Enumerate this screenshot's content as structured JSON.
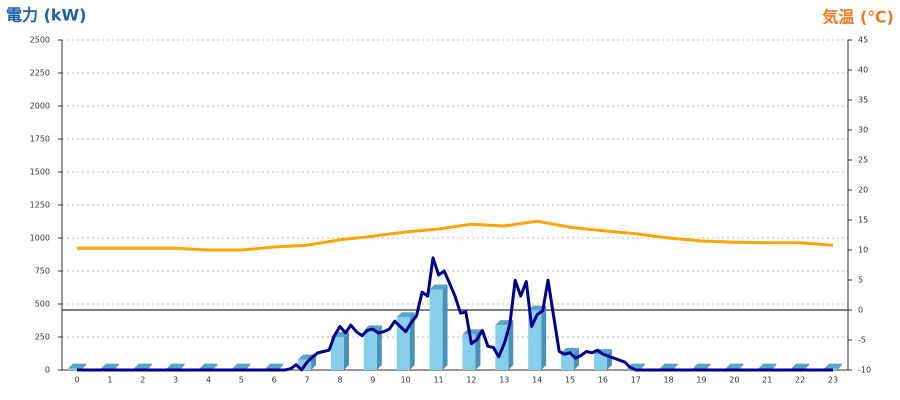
{
  "chart_data": {
    "type": "combo",
    "title_left": "電力 (kW)",
    "title_right": "気温 (℃)",
    "categories": [
      "0",
      "1",
      "2",
      "3",
      "4",
      "5",
      "6",
      "7",
      "8",
      "9",
      "10",
      "11",
      "12",
      "13",
      "14",
      "15",
      "16",
      "17",
      "18",
      "19",
      "20",
      "21",
      "22",
      "23"
    ],
    "series": [
      {
        "type": "bar",
        "color": "#87ceeb",
        "values": [
          10,
          10,
          10,
          10,
          10,
          10,
          10,
          80,
          250,
          300,
          400,
          610,
          270,
          340,
          450,
          130,
          120,
          10,
          10,
          10,
          10,
          10,
          10,
          10
        ]
      },
      {
        "type": "line",
        "color": "#00008b",
        "x": [
          0,
          6,
          6.33,
          6.5,
          6.67,
          6.83,
          7,
          7.17,
          7.33,
          7.5,
          7.67,
          7.83,
          8,
          8.17,
          8.33,
          8.5,
          8.67,
          8.83,
          9,
          9.17,
          9.33,
          9.5,
          9.67,
          9.83,
          10,
          10.17,
          10.33,
          10.5,
          10.67,
          10.83,
          11,
          11.17,
          11.33,
          11.5,
          11.67,
          11.83,
          12,
          12.17,
          12.33,
          12.5,
          12.67,
          12.83,
          13,
          13.17,
          13.33,
          13.5,
          13.67,
          13.83,
          14,
          14.17,
          14.33,
          14.5,
          14.67,
          14.83,
          15,
          15.17,
          15.33,
          15.5,
          15.67,
          15.83,
          16,
          16.33,
          16.67,
          16.83,
          17,
          23
        ],
        "values": [
          0,
          0,
          0,
          10,
          40,
          0,
          60,
          100,
          130,
          140,
          150,
          260,
          330,
          280,
          340,
          290,
          260,
          300,
          310,
          280,
          290,
          310,
          370,
          330,
          290,
          360,
          410,
          590,
          560,
          850,
          720,
          750,
          660,
          560,
          430,
          440,
          200,
          230,
          300,
          180,
          170,
          100,
          200,
          350,
          680,
          560,
          670,
          330,
          420,
          450,
          680,
          410,
          140,
          120,
          130,
          90,
          110,
          140,
          130,
          150,
          120,
          90,
          60,
          20,
          0,
          0
        ]
      },
      {
        "type": "line",
        "axis": "y2",
        "color": "#ffa500",
        "values": [
          10.3,
          10.3,
          10.3,
          10.3,
          10,
          10,
          10.5,
          10.8,
          11.7,
          12.3,
          13,
          13.5,
          14.3,
          14,
          14.8,
          13.8,
          13.2,
          12.7,
          12,
          11.5,
          11.3,
          11.2,
          11.2,
          10.8
        ]
      }
    ],
    "ylim": [
      0,
      2500
    ],
    "yticks": [
      0,
      250,
      500,
      750,
      1000,
      1250,
      1500,
      1750,
      2000,
      2250,
      2500
    ],
    "y2lim": [
      -10,
      45
    ],
    "y2ticks": [
      -10,
      -5,
      0,
      5,
      10,
      15,
      20,
      25,
      30,
      35,
      40,
      45
    ],
    "grid": true
  }
}
